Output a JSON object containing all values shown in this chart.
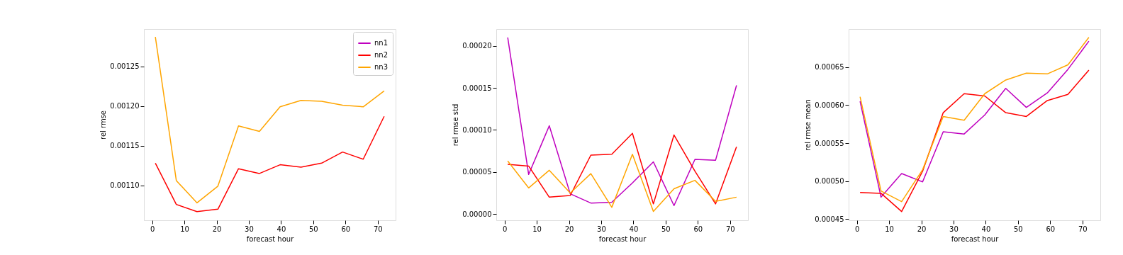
{
  "chart_data": [
    {
      "type": "line",
      "xlabel": "forecast hour",
      "ylabel": "rel rmse",
      "x": [
        1,
        7.5,
        13.9,
        20.4,
        26.8,
        33.3,
        39.7,
        46.2,
        52.6,
        59.1,
        65.5,
        72
      ],
      "xlim": [
        -2.55,
        75.55
      ],
      "xticks": [
        0,
        10,
        20,
        30,
        40,
        50,
        60,
        70
      ],
      "ylim": [
        0.001056,
        0.001297
      ],
      "yticks": [
        {
          "value": 0.0011,
          "label": "0.00110"
        },
        {
          "value": 0.00115,
          "label": "0.00115"
        },
        {
          "value": 0.0012,
          "label": "0.00120"
        },
        {
          "value": 0.00125,
          "label": "0.00125"
        }
      ],
      "grid": false,
      "legend": "top right",
      "line_style": "solid",
      "marker": "none",
      "series": [
        {
          "name": "nn1",
          "color": "#bf00bf",
          "values": [
            null,
            null,
            null,
            null,
            null,
            null,
            null,
            null,
            null,
            null,
            null,
            null
          ]
        },
        {
          "name": "nn2",
          "color": "#ff0000",
          "values": [
            0.001128,
            0.001076,
            0.001067,
            0.00107,
            0.001121,
            0.001115,
            0.001126,
            0.001123,
            0.001128,
            0.001142,
            0.001133,
            0.001187
          ]
        },
        {
          "name": "nn3",
          "color": "#ffa500",
          "values": [
            0.001287,
            0.001106,
            0.001078,
            0.001099,
            0.001175,
            0.001168,
            0.001199,
            0.001207,
            0.001206,
            0.001201,
            0.001199,
            0.001219
          ]
        }
      ]
    },
    {
      "type": "line",
      "xlabel": "forecast hour",
      "ylabel": "rel rmse std",
      "x": [
        1,
        7.5,
        13.9,
        20.4,
        26.8,
        33.3,
        39.7,
        46.2,
        52.6,
        59.1,
        65.5,
        72
      ],
      "xlim": [
        -2.55,
        75.55
      ],
      "xticks": [
        0,
        10,
        20,
        30,
        40,
        50,
        60,
        70
      ],
      "ylim": [
        -7.5e-06,
        0.00022
      ],
      "yticks": [
        {
          "value": 0,
          "label": "0.00000"
        },
        {
          "value": 5e-05,
          "label": "0.00005"
        },
        {
          "value": 0.0001,
          "label": "0.00010"
        },
        {
          "value": 0.00015,
          "label": "0.00015"
        },
        {
          "value": 0.0002,
          "label": "0.00020"
        }
      ],
      "grid": false,
      "legend": false,
      "line_style": "solid",
      "marker": "none",
      "series": [
        {
          "color": "#bf00bf",
          "values": [
            0.00021,
            4.7e-05,
            0.000105,
            2.4e-05,
            1.3e-05,
            1.4e-05,
            3.7e-05,
            6.2e-05,
            1e-05,
            6.5e-05,
            6.4e-05,
            0.000153
          ]
        },
        {
          "color": "#ff0000",
          "values": [
            5.9e-05,
            5.7e-05,
            2e-05,
            2.2e-05,
            7e-05,
            7.1e-05,
            9.6e-05,
            1.2e-05,
            9.4e-05,
            5.1e-05,
            1.2e-05,
            8e-05
          ]
        },
        {
          "color": "#ffa500",
          "values": [
            6.3e-05,
            3.1e-05,
            5.2e-05,
            2.5e-05,
            4.8e-05,
            8e-06,
            7.1e-05,
            3e-06,
            3e-05,
            4e-05,
            1.5e-05,
            2e-05
          ]
        }
      ]
    },
    {
      "type": "line",
      "xlabel": "forecast hour",
      "ylabel": "rel rmse mean",
      "x": [
        1,
        7.5,
        13.9,
        20.4,
        26.8,
        33.3,
        39.7,
        46.2,
        52.6,
        59.1,
        65.5,
        72
      ],
      "xlim": [
        -2.55,
        75.55
      ],
      "xticks": [
        0,
        10,
        20,
        30,
        40,
        50,
        60,
        70
      ],
      "ylim": [
        0.0004485,
        0.0007
      ],
      "yticks": [
        {
          "value": 0.00045,
          "label": "0.00045"
        },
        {
          "value": 0.0005,
          "label": "0.00050"
        },
        {
          "value": 0.00055,
          "label": "0.00055"
        },
        {
          "value": 0.0006,
          "label": "0.00060"
        },
        {
          "value": 0.00065,
          "label": "0.00065"
        }
      ],
      "grid": false,
      "legend": false,
      "line_style": "solid",
      "marker": "none",
      "series": [
        {
          "color": "#bf00bf",
          "values": [
            0.000605,
            0.000479,
            0.00051,
            0.000499,
            0.000565,
            0.000562,
            0.000587,
            0.000622,
            0.000597,
            0.000616,
            0.000647,
            0.000684
          ]
        },
        {
          "color": "#ff0000",
          "values": [
            0.000485,
            0.000484,
            0.00046,
            0.000513,
            0.00059,
            0.000615,
            0.000612,
            0.00059,
            0.000585,
            0.000606,
            0.000614,
            0.000646
          ]
        },
        {
          "color": "#ffa500",
          "values": [
            0.000611,
            0.000487,
            0.000473,
            0.000515,
            0.000585,
            0.00058,
            0.000615,
            0.000633,
            0.000642,
            0.000641,
            0.000653,
            0.000689
          ]
        }
      ]
    }
  ]
}
